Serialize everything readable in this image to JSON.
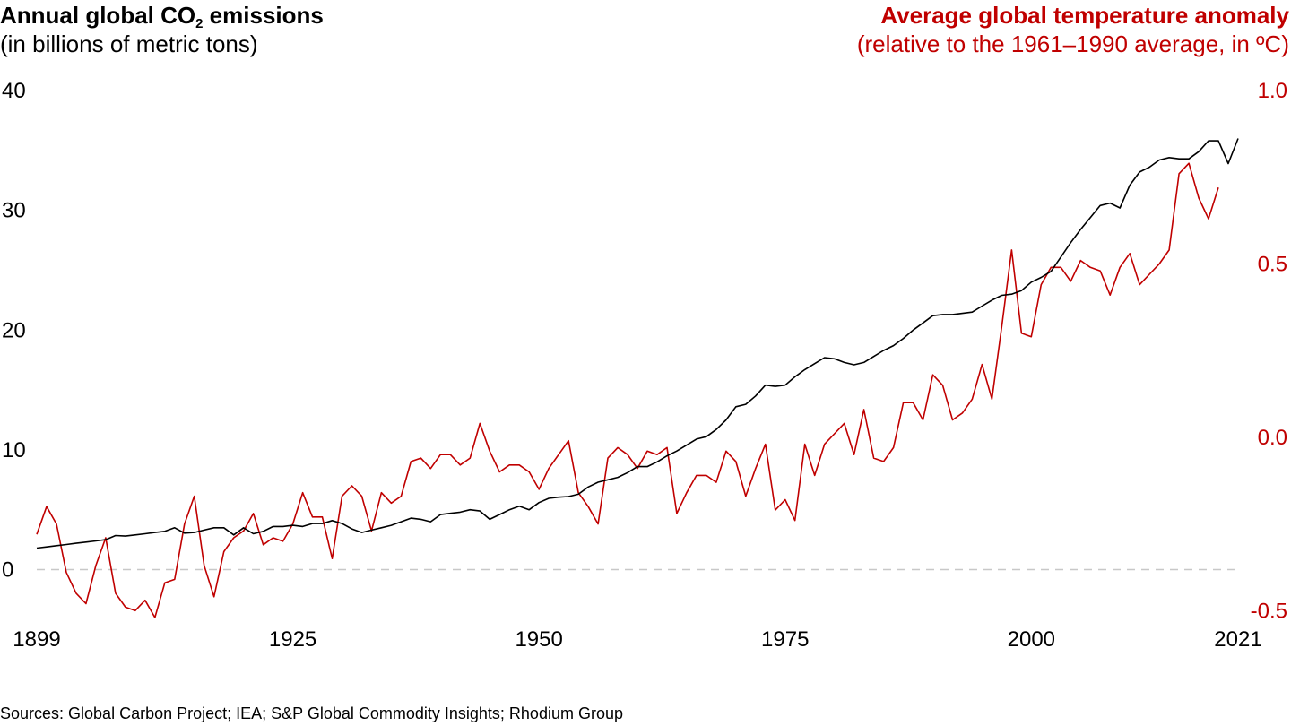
{
  "header": {
    "left_title_main": "Annual global CO",
    "left_title_sub": "2",
    "left_title_end": " emissions",
    "left_subtitle": "(in billions of metric tons)",
    "right_title": "Average global temperature anomaly",
    "right_subtitle": "(relative to the 1961–1990 average, in ºC)"
  },
  "footer": {
    "source": "Sources: Global Carbon Project; IEA; S&P Global Commodity Insights; Rhodium Group"
  },
  "colors": {
    "co2": "#000000",
    "temperature": "#c00000",
    "zero_line": "#c8c8c8"
  },
  "chart_data": {
    "type": "line",
    "x_ticks": [
      1899,
      1925,
      1950,
      1975,
      2000,
      2021
    ],
    "y_left": {
      "label": "Annual global CO2 emissions (in billions of metric tons)",
      "ticks": [
        0,
        10,
        20,
        30,
        40
      ],
      "ylim": [
        -4,
        40
      ]
    },
    "y_right": {
      "label": "Average global temperature anomaly (relative to the 1961–1990 average, in ºC)",
      "ticks": [
        -0.5,
        0.0,
        0.5,
        1.0
      ],
      "tick_labels": [
        "-0.5",
        "0.0",
        "0.5",
        "1.0"
      ],
      "ylim": [
        -0.52,
        1.0
      ]
    },
    "zero_line": {
      "axis": "left",
      "value": 0,
      "style": "dashed"
    },
    "grid": false,
    "x_start": 1899,
    "series": [
      {
        "axis": "left",
        "values": [
          1.8,
          1.9,
          2.0,
          2.1,
          2.2,
          2.3,
          2.4,
          2.5,
          2.85,
          2.8,
          2.9,
          3.0,
          3.1,
          3.2,
          3.5,
          3.05,
          3.1,
          3.3,
          3.5,
          3.5,
          2.9,
          3.5,
          3.0,
          3.2,
          3.6,
          3.6,
          3.7,
          3.6,
          3.85,
          3.85,
          4.1,
          3.85,
          3.4,
          3.1,
          3.3,
          3.5,
          3.7,
          4.0,
          4.3,
          4.2,
          4.0,
          4.6,
          4.7,
          4.8,
          5.0,
          4.9,
          4.2,
          4.6,
          5.0,
          5.3,
          5.0,
          5.6,
          5.95,
          6.05,
          6.1,
          6.3,
          6.9,
          7.3,
          7.5,
          7.7,
          8.1,
          8.6,
          8.6,
          9.0,
          9.5,
          9.9,
          10.4,
          10.9,
          11.1,
          11.7,
          12.5,
          13.6,
          13.8,
          14.5,
          15.4,
          15.3,
          15.4,
          16.1,
          16.7,
          17.2,
          17.7,
          17.6,
          17.3,
          17.1,
          17.3,
          17.8,
          18.3,
          18.7,
          19.3,
          20.0,
          20.6,
          21.2,
          21.3,
          21.3,
          21.4,
          21.5,
          22.0,
          22.5,
          22.9,
          23.0,
          23.3,
          24.0,
          24.4,
          24.9,
          26.1,
          27.3,
          28.4,
          29.4,
          30.4,
          30.6,
          30.2,
          32.1,
          33.2,
          33.6,
          34.2,
          34.4,
          34.3,
          34.3,
          34.9,
          35.8,
          35.8,
          33.9,
          36.0
        ]
      },
      {
        "axis": "right",
        "values": [
          -0.28,
          -0.2,
          -0.25,
          -0.39,
          -0.45,
          -0.48,
          -0.37,
          -0.29,
          -0.45,
          -0.49,
          -0.5,
          -0.47,
          -0.52,
          -0.42,
          -0.41,
          -0.25,
          -0.17,
          -0.37,
          -0.46,
          -0.33,
          -0.29,
          -0.27,
          -0.22,
          -0.31,
          -0.29,
          -0.3,
          -0.25,
          -0.16,
          -0.23,
          -0.23,
          -0.35,
          -0.17,
          -0.14,
          -0.17,
          -0.27,
          -0.16,
          -0.19,
          -0.17,
          -0.07,
          -0.06,
          -0.09,
          -0.05,
          -0.05,
          -0.08,
          -0.06,
          0.04,
          -0.04,
          -0.1,
          -0.08,
          -0.08,
          -0.1,
          -0.15,
          -0.09,
          -0.05,
          -0.01,
          -0.16,
          -0.2,
          -0.25,
          -0.06,
          -0.03,
          -0.05,
          -0.09,
          -0.04,
          -0.05,
          -0.03,
          -0.22,
          -0.16,
          -0.11,
          -0.11,
          -0.13,
          -0.04,
          -0.07,
          -0.17,
          -0.09,
          -0.02,
          -0.21,
          -0.18,
          -0.24,
          -0.02,
          -0.11,
          -0.02,
          0.01,
          0.04,
          -0.05,
          0.08,
          -0.06,
          -0.07,
          -0.03,
          0.1,
          0.1,
          0.05,
          0.18,
          0.15,
          0.05,
          0.07,
          0.11,
          0.21,
          0.11,
          0.32,
          0.54,
          0.3,
          0.29,
          0.44,
          0.49,
          0.49,
          0.45,
          0.51,
          0.49,
          0.48,
          0.41,
          0.49,
          0.53,
          0.44,
          0.47,
          0.5,
          0.54,
          0.76,
          0.79,
          0.69,
          0.63,
          0.72
        ]
      }
    ]
  }
}
